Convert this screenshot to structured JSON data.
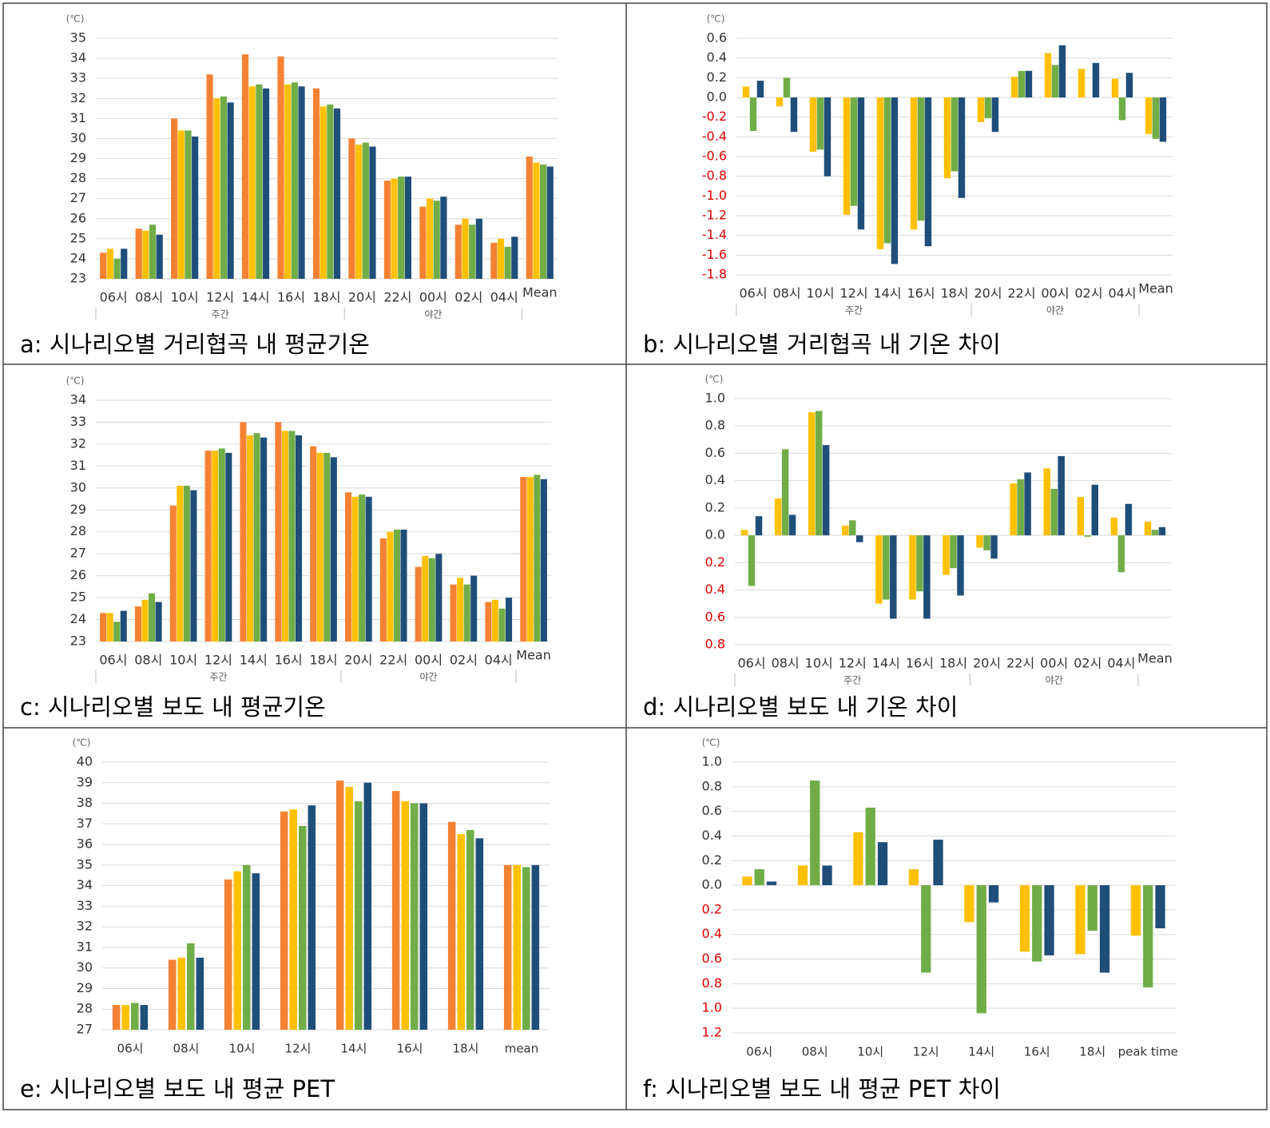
{
  "chart_data": [
    {
      "type": "bar",
      "title": "a: 시나리오별 거리협곡 내 평균기온",
      "unit": "(℃)",
      "categories": [
        "06시",
        "08시",
        "10시",
        "12시",
        "14시",
        "16시",
        "18시",
        "20시",
        "22시",
        "00시",
        "02시",
        "04시",
        "Mean"
      ],
      "groups": [
        {
          "label": "주간",
          "count": 7
        },
        {
          "label": "야간",
          "count": 5
        }
      ],
      "series": [
        {
          "color": "#f58233",
          "values": [
            24.3,
            25.5,
            31.0,
            33.2,
            34.2,
            34.1,
            32.5,
            30.0,
            27.9,
            26.6,
            25.7,
            24.8,
            29.1
          ]
        },
        {
          "color": "#ffc000",
          "values": [
            24.5,
            25.4,
            30.4,
            32.0,
            32.6,
            32.7,
            31.6,
            29.7,
            28.0,
            27.0,
            26.0,
            25.0,
            28.8
          ]
        },
        {
          "color": "#70ad47",
          "values": [
            24.0,
            25.7,
            30.4,
            32.1,
            32.7,
            32.8,
            31.7,
            29.8,
            28.1,
            26.9,
            25.7,
            24.6,
            28.7
          ]
        },
        {
          "color": "#1f4e79",
          "values": [
            24.5,
            25.2,
            30.1,
            31.8,
            32.5,
            32.6,
            31.5,
            29.6,
            28.1,
            27.1,
            26.0,
            25.1,
            28.6
          ]
        }
      ],
      "ylim": [
        23,
        35
      ],
      "yticks": [
        23,
        24,
        25,
        26,
        27,
        28,
        29,
        30,
        31,
        32,
        33,
        34,
        35
      ],
      "grid": true
    },
    {
      "type": "bar",
      "title": "b: 시나리오별 거리협곡 내 기온 차이",
      "unit": "(℃)",
      "categories": [
        "06시",
        "08시",
        "10시",
        "12시",
        "14시",
        "16시",
        "18시",
        "20시",
        "22시",
        "00시",
        "02시",
        "04시",
        "Mean"
      ],
      "groups": [
        {
          "label": "주간",
          "count": 7
        },
        {
          "label": "야간",
          "count": 5
        }
      ],
      "series": [
        {
          "color": "#ffc000",
          "values": [
            0.11,
            -0.09,
            -0.55,
            -1.19,
            -1.54,
            -1.34,
            -0.82,
            -0.25,
            0.21,
            0.45,
            0.29,
            0.19,
            -0.37
          ]
        },
        {
          "color": "#70ad47",
          "values": [
            -0.34,
            0.2,
            -0.53,
            -1.1,
            -1.48,
            -1.25,
            -0.75,
            -0.21,
            0.27,
            0.33,
            0,
            -0.23,
            -0.42
          ]
        },
        {
          "color": "#1f4e79",
          "values": [
            0.17,
            -0.35,
            -0.8,
            -1.34,
            -1.69,
            -1.51,
            -1.02,
            -0.35,
            0.27,
            0.53,
            0.35,
            0.25,
            -0.45
          ]
        }
      ],
      "ylim": [
        -1.8,
        0.6
      ],
      "yticks": [
        -1.8,
        -1.6,
        -1.4,
        -1.2,
        {
          "value": -1.0,
          "label": "-1.0"
        },
        -0.8,
        -0.6,
        -0.4,
        -0.2,
        {
          "value": 0,
          "label": "0.0"
        },
        0.2,
        0.4,
        0.6
      ],
      "negative_tick_color": "#e00000",
      "grid": true
    },
    {
      "type": "bar",
      "title": "c: 시나리오별 보도 내 평균기온",
      "unit": "(℃)",
      "categories": [
        "06시",
        "08시",
        "10시",
        "12시",
        "14시",
        "16시",
        "18시",
        "20시",
        "22시",
        "00시",
        "02시",
        "04시",
        "Mean"
      ],
      "groups": [
        {
          "label": "주간",
          "count": 7
        },
        {
          "label": "야간",
          "count": 5
        }
      ],
      "series": [
        {
          "color": "#f58233",
          "values": [
            24.3,
            24.6,
            29.2,
            31.7,
            33.0,
            33.0,
            31.9,
            29.8,
            27.7,
            26.4,
            25.6,
            24.8,
            30.5
          ]
        },
        {
          "color": "#ffc000",
          "values": [
            24.3,
            24.9,
            30.1,
            31.7,
            32.4,
            32.6,
            31.6,
            29.6,
            28.0,
            26.9,
            25.9,
            24.9,
            30.5
          ]
        },
        {
          "color": "#70ad47",
          "values": [
            23.9,
            25.2,
            30.1,
            31.8,
            32.5,
            32.6,
            31.6,
            29.7,
            28.1,
            26.8,
            25.6,
            24.5,
            30.6
          ]
        },
        {
          "color": "#1f4e79",
          "values": [
            24.4,
            24.8,
            29.9,
            31.6,
            32.3,
            32.4,
            31.4,
            29.6,
            28.1,
            27.0,
            26.0,
            25.0,
            30.4
          ]
        }
      ],
      "ylim": [
        23,
        34
      ],
      "yticks": [
        23,
        24,
        25,
        26,
        27,
        28,
        29,
        30,
        31,
        32,
        33,
        34
      ],
      "grid": true
    },
    {
      "type": "bar",
      "title": "d: 시나리오별 보도 내 기온 차이",
      "unit": "(℃)",
      "categories": [
        "06시",
        "08시",
        "10시",
        "12시",
        "14시",
        "16시",
        "18시",
        "20시",
        "22시",
        "00시",
        "02시",
        "04시",
        "Mean"
      ],
      "groups": [
        {
          "label": "주간",
          "count": 7
        },
        {
          "label": "야간",
          "count": 5
        }
      ],
      "series": [
        {
          "color": "#ffc000",
          "values": [
            0.04,
            0.27,
            0.9,
            0.07,
            -0.5,
            -0.47,
            -0.29,
            -0.09,
            0.38,
            0.49,
            0.28,
            0.13,
            0.1
          ]
        },
        {
          "color": "#70ad47",
          "values": [
            -0.37,
            0.63,
            0.91,
            0.11,
            -0.47,
            -0.41,
            -0.24,
            -0.11,
            0.41,
            0.34,
            -0.01,
            -0.27,
            0.04
          ]
        },
        {
          "color": "#1f4e79",
          "values": [
            0.14,
            0.15,
            0.66,
            -0.05,
            -0.61,
            -0.61,
            -0.44,
            -0.17,
            0.46,
            0.58,
            0.37,
            0.23,
            0.06
          ]
        }
      ],
      "ylim": [
        -0.8,
        1.0
      ],
      "yticks": [
        {
          "value": -0.8,
          "label": "0.8"
        },
        {
          "value": -0.6,
          "label": "0.6"
        },
        {
          "value": -0.4,
          "label": "0.4"
        },
        {
          "value": -0.2,
          "label": "0.2"
        },
        {
          "value": 0,
          "label": "0.0"
        },
        0.2,
        0.4,
        0.6,
        0.8,
        {
          "value": 1.0,
          "label": "1.0"
        }
      ],
      "negative_tick_color": "#e00000",
      "grid": true
    },
    {
      "type": "bar",
      "title": "e: 시나리오별 보도 내 평균 PET",
      "unit": "(℃)",
      "categories": [
        "06시",
        "08시",
        "10시",
        "12시",
        "14시",
        "16시",
        "18시",
        "mean"
      ],
      "series": [
        {
          "color": "#f58233",
          "values": [
            28.2,
            30.4,
            34.3,
            37.6,
            39.1,
            38.6,
            37.1,
            35.0
          ]
        },
        {
          "color": "#ffc000",
          "values": [
            28.2,
            30.5,
            34.7,
            37.7,
            38.8,
            38.1,
            36.5,
            35.0
          ]
        },
        {
          "color": "#70ad47",
          "values": [
            28.3,
            31.2,
            35.0,
            36.9,
            38.1,
            38.0,
            36.7,
            34.9
          ]
        },
        {
          "color": "#1f4e79",
          "values": [
            28.2,
            30.5,
            34.6,
            37.9,
            39.0,
            38.0,
            36.3,
            35.0
          ]
        }
      ],
      "ylim": [
        27,
        40
      ],
      "yticks": [
        27,
        28,
        29,
        30,
        31,
        32,
        33,
        34,
        35,
        36,
        37,
        38,
        39,
        40
      ],
      "grid": true
    },
    {
      "type": "bar",
      "title": "f: 시나리오별 보도 내 평균 PET 차이",
      "unit": "(℃)",
      "categories": [
        "06시",
        "08시",
        "10시",
        "12시",
        "14시",
        "16시",
        "18시",
        "peak time"
      ],
      "series": [
        {
          "color": "#ffc000",
          "values": [
            0.07,
            0.16,
            0.43,
            0.13,
            -0.3,
            -0.54,
            -0.56,
            -0.41
          ]
        },
        {
          "color": "#70ad47",
          "values": [
            0.13,
            0.85,
            0.63,
            -0.71,
            -1.04,
            -0.62,
            -0.37,
            -0.83
          ]
        },
        {
          "color": "#1f4e79",
          "values": [
            0.03,
            0.16,
            0.35,
            0.37,
            -0.14,
            -0.57,
            -0.71,
            -0.35
          ]
        }
      ],
      "ylim": [
        -1.2,
        1.0
      ],
      "yticks": [
        {
          "value": -1.2,
          "label": "1.2"
        },
        {
          "value": -1.0,
          "label": "1.0"
        },
        {
          "value": -0.8,
          "label": "0.8"
        },
        {
          "value": -0.6,
          "label": "0.6"
        },
        {
          "value": -0.4,
          "label": "0.4"
        },
        {
          "value": -0.2,
          "label": "0.2"
        },
        {
          "value": 0,
          "label": "0.0"
        },
        0.2,
        0.4,
        0.6,
        0.8,
        {
          "value": 1.0,
          "label": "1.0"
        }
      ],
      "negative_tick_color": "#e00000",
      "grid": true
    }
  ]
}
